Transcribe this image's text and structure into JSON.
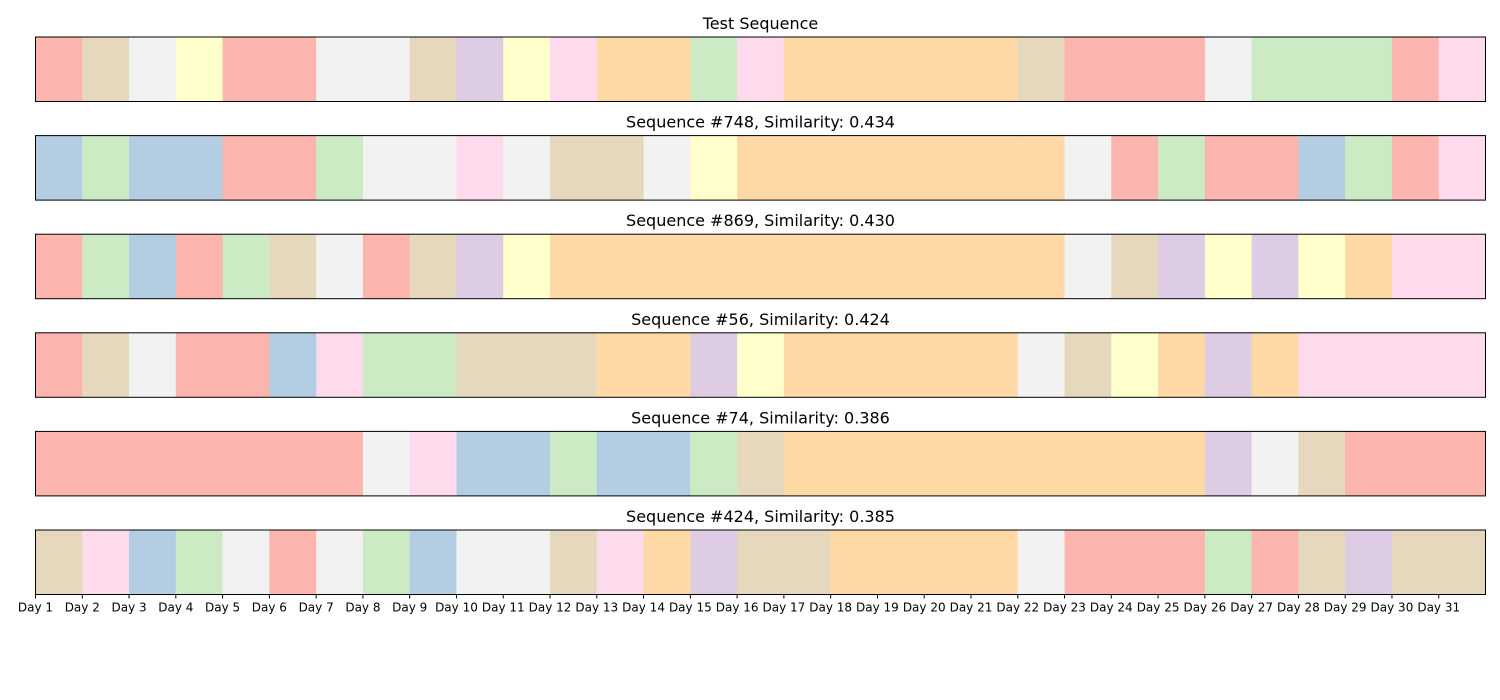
{
  "chart_data": {
    "type": "heatmap",
    "colors": {
      "red": "#fbb4ae",
      "blue": "#b3cde3",
      "green": "#ccebc5",
      "purple": "#decbe4",
      "orange": "#fed9a6",
      "yellow": "#ffffcc",
      "tan": "#e5d8bd",
      "pink": "#fddaec",
      "gray": "#f2f2f2"
    },
    "x_ticks": [
      "Day 1",
      "Day 2",
      "Day 3",
      "Day 4",
      "Day 5",
      "Day 6",
      "Day 7",
      "Day 8",
      "Day 9",
      "Day 10",
      "Day 11",
      "Day 12",
      "Day 13",
      "Day 14",
      "Day 15",
      "Day 16",
      "Day 17",
      "Day 18",
      "Day 19",
      "Day 20",
      "Day 21",
      "Day 22",
      "Day 23",
      "Day 24",
      "Day 25",
      "Day 26",
      "Day 27",
      "Day 28",
      "Day 29",
      "Day 30",
      "Day 31"
    ],
    "rows": [
      {
        "title": "Test Sequence",
        "cells": [
          "red",
          "tan",
          "gray",
          "yellow",
          "red",
          "red",
          "gray",
          "gray",
          "tan",
          "purple",
          "yellow",
          "pink",
          "orange",
          "orange",
          "green",
          "pink",
          "orange",
          "orange",
          "orange",
          "orange",
          "orange",
          "tan",
          "red",
          "red",
          "red",
          "gray",
          "green",
          "green",
          "green",
          "red",
          "pink"
        ]
      },
      {
        "title": "Sequence #748, Similarity: 0.434",
        "cells": [
          "blue",
          "green",
          "blue",
          "blue",
          "red",
          "red",
          "green",
          "gray",
          "gray",
          "pink",
          "gray",
          "tan",
          "tan",
          "gray",
          "yellow",
          "orange",
          "orange",
          "orange",
          "orange",
          "orange",
          "orange",
          "orange",
          "gray",
          "red",
          "green",
          "red",
          "red",
          "blue",
          "green",
          "red",
          "pink"
        ]
      },
      {
        "title": "Sequence #869, Similarity: 0.430",
        "cells": [
          "red",
          "green",
          "blue",
          "red",
          "green",
          "tan",
          "gray",
          "red",
          "tan",
          "purple",
          "yellow",
          "orange",
          "orange",
          "orange",
          "orange",
          "orange",
          "orange",
          "orange",
          "orange",
          "orange",
          "orange",
          "orange",
          "gray",
          "tan",
          "purple",
          "yellow",
          "purple",
          "yellow",
          "orange",
          "pink",
          "pink"
        ]
      },
      {
        "title": "Sequence #56, Similarity: 0.424",
        "cells": [
          "red",
          "tan",
          "gray",
          "red",
          "red",
          "blue",
          "pink",
          "green",
          "green",
          "tan",
          "tan",
          "tan",
          "orange",
          "orange",
          "purple",
          "yellow",
          "orange",
          "orange",
          "orange",
          "orange",
          "orange",
          "gray",
          "tan",
          "yellow",
          "orange",
          "purple",
          "orange",
          "pink",
          "pink",
          "pink",
          "pink"
        ]
      },
      {
        "title": "Sequence #74, Similarity: 0.386",
        "cells": [
          "red",
          "red",
          "red",
          "red",
          "red",
          "red",
          "red",
          "gray",
          "pink",
          "blue",
          "blue",
          "green",
          "blue",
          "blue",
          "green",
          "tan",
          "orange",
          "orange",
          "orange",
          "orange",
          "orange",
          "orange",
          "orange",
          "orange",
          "orange",
          "purple",
          "gray",
          "tan",
          "red",
          "red",
          "red"
        ]
      },
      {
        "title": "Sequence #424, Similarity: 0.385",
        "cells": [
          "tan",
          "pink",
          "blue",
          "green",
          "gray",
          "red",
          "gray",
          "green",
          "blue",
          "gray",
          "gray",
          "tan",
          "pink",
          "orange",
          "purple",
          "tan",
          "tan",
          "orange",
          "orange",
          "orange",
          "orange",
          "gray",
          "red",
          "red",
          "red",
          "green",
          "red",
          "tan",
          "purple",
          "tan",
          "tan"
        ]
      }
    ]
  }
}
